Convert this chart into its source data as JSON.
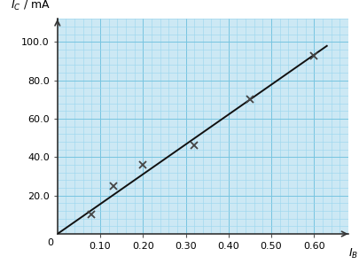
{
  "title": "",
  "xlabel": "$I_B$ / mA",
  "ylabel": "$I_C$ / mA",
  "xlim": [
    0,
    0.68
  ],
  "ylim": [
    0,
    112
  ],
  "xticks": [
    0.1,
    0.2,
    0.3,
    0.4,
    0.5,
    0.6
  ],
  "yticks": [
    20.0,
    40.0,
    60.0,
    80.0,
    100.0
  ],
  "data_x": [
    0.08,
    0.13,
    0.2,
    0.32,
    0.45,
    0.6
  ],
  "data_y": [
    10,
    25,
    36,
    46,
    70,
    93
  ],
  "line_x": [
    0.0,
    0.63
  ],
  "line_y": [
    0.0,
    98.0
  ],
  "marker_color": "#444444",
  "line_color": "#111111",
  "grid_minor_color": "#99d6ed",
  "grid_major_color": "#77c4e0",
  "bg_color": "#cce8f4",
  "figsize": [
    4.05,
    3.07
  ],
  "dpi": 100,
  "zero_label": "0",
  "xlabel_fontsize": 9,
  "ylabel_fontsize": 9,
  "tick_fontsize": 8
}
